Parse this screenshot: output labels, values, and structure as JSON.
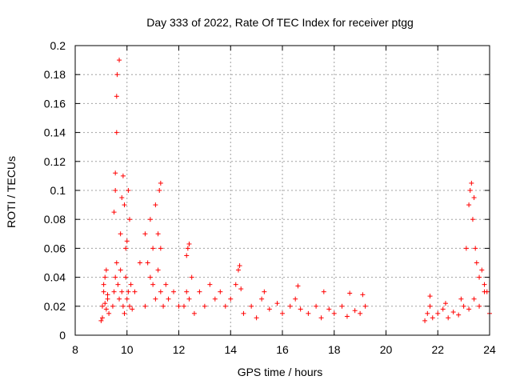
{
  "chart_data": {
    "type": "scatter",
    "title": "Day 333 of 2022, Rate Of TEC Index for receiver ptgg",
    "xlabel": "GPS time / hours",
    "ylabel": "ROTI / TECUs",
    "xlim": [
      8,
      24
    ],
    "ylim": [
      0,
      0.2
    ],
    "xticks": [
      "8",
      "10",
      "12",
      "14",
      "16",
      "18",
      "20",
      "22",
      "24"
    ],
    "yticks": [
      "0",
      "0.02",
      "0.04",
      "0.06",
      "0.08",
      "0.1",
      "0.12",
      "0.14",
      "0.16",
      "0.18",
      "0.2"
    ],
    "grid": true,
    "marker": "+",
    "color": "#ff0000",
    "series": [
      {
        "name": "",
        "x": [
          9.0,
          9.05,
          9.1,
          9.15,
          9.2,
          9.25,
          9.3,
          9.05,
          9.1,
          9.15,
          9.2,
          9.25,
          9.45,
          9.5,
          9.55,
          9.6,
          9.65,
          9.7,
          9.75,
          9.8,
          9.85,
          9.9,
          9.95,
          10.0,
          10.05,
          10.1,
          10.15,
          10.2,
          9.5,
          9.55,
          9.55,
          9.6,
          9.6,
          9.62,
          9.7,
          9.75,
          9.8,
          9.85,
          9.9,
          9.95,
          10.0,
          10.05,
          10.1,
          10.3,
          10.5,
          10.7,
          10.9,
          11.0,
          11.1,
          11.2,
          11.3,
          11.4,
          11.5,
          11.6,
          11.8,
          12.0,
          10.7,
          10.8,
          10.9,
          11.0,
          11.1,
          11.2,
          11.25,
          11.3,
          11.3,
          12.2,
          12.3,
          12.4,
          12.5,
          12.6,
          12.8,
          13.0,
          13.2,
          13.4,
          13.6,
          13.8,
          14.0,
          12.3,
          12.35,
          12.4,
          14.2,
          14.3,
          14.35,
          14.5,
          14.8,
          15.0,
          15.2,
          15.5,
          15.8,
          16.0,
          16.3,
          16.5,
          16.7,
          17.0,
          17.3,
          17.5,
          17.8,
          18.0,
          18.3,
          18.5,
          18.8,
          19.0,
          19.2,
          14.4,
          15.3,
          16.6,
          17.6,
          18.6,
          19.1,
          21.5,
          21.6,
          21.7,
          21.8,
          22.0,
          22.2,
          22.4,
          22.6,
          22.8,
          23.0,
          23.2,
          23.4,
          23.6,
          23.8,
          24.0,
          21.7,
          22.3,
          22.9,
          23.1,
          23.2,
          23.25,
          23.3,
          23.35,
          23.4,
          23.45,
          23.5,
          23.6,
          23.7,
          23.8,
          23.9
        ],
        "y": [
          0.01,
          0.02,
          0.03,
          0.04,
          0.045,
          0.025,
          0.015,
          0.012,
          0.035,
          0.022,
          0.018,
          0.028,
          0.02,
          0.03,
          0.04,
          0.05,
          0.035,
          0.025,
          0.045,
          0.03,
          0.02,
          0.015,
          0.04,
          0.025,
          0.03,
          0.02,
          0.035,
          0.018,
          0.085,
          0.1,
          0.112,
          0.14,
          0.165,
          0.18,
          0.19,
          0.07,
          0.095,
          0.11,
          0.09,
          0.06,
          0.065,
          0.1,
          0.08,
          0.03,
          0.05,
          0.02,
          0.04,
          0.035,
          0.025,
          0.045,
          0.03,
          0.02,
          0.035,
          0.025,
          0.03,
          0.02,
          0.07,
          0.05,
          0.08,
          0.06,
          0.09,
          0.07,
          0.1,
          0.105,
          0.06,
          0.02,
          0.03,
          0.025,
          0.04,
          0.015,
          0.03,
          0.02,
          0.035,
          0.025,
          0.03,
          0.02,
          0.025,
          0.055,
          0.06,
          0.063,
          0.035,
          0.045,
          0.048,
          0.015,
          0.02,
          0.012,
          0.025,
          0.018,
          0.022,
          0.015,
          0.02,
          0.025,
          0.018,
          0.015,
          0.02,
          0.012,
          0.018,
          0.015,
          0.02,
          0.013,
          0.017,
          0.015,
          0.02,
          0.032,
          0.03,
          0.034,
          0.03,
          0.029,
          0.028,
          0.01,
          0.015,
          0.02,
          0.012,
          0.015,
          0.018,
          0.012,
          0.016,
          0.014,
          0.02,
          0.018,
          0.025,
          0.02,
          0.03,
          0.015,
          0.027,
          0.022,
          0.025,
          0.06,
          0.09,
          0.1,
          0.105,
          0.08,
          0.095,
          0.06,
          0.05,
          0.04,
          0.045,
          0.035,
          0.03
        ]
      }
    ]
  }
}
